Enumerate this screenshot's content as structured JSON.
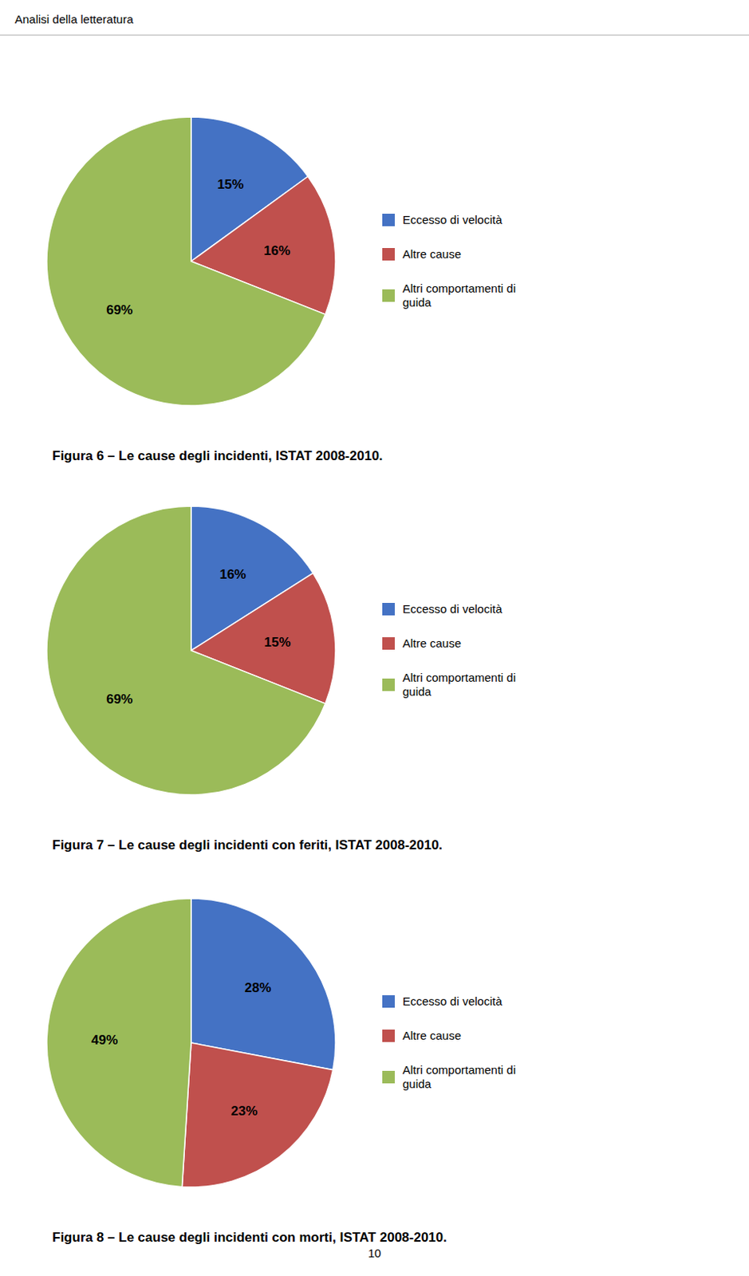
{
  "header": "Analisi della letteratura",
  "page_number": "10",
  "chart_data": [
    {
      "type": "pie",
      "title": "Figura 6 – Le cause degli incidenti, ISTAT 2008-2010.",
      "categories": [
        "Eccesso di velocità",
        "Altre cause",
        "Altri comportamenti di\nguida"
      ],
      "values": [
        15,
        16,
        69
      ],
      "value_labels": [
        "15%",
        "16%",
        "69%"
      ],
      "colors": [
        "#4472C4",
        "#C0504D",
        "#9BBB59"
      ],
      "data_labels": true,
      "legend": "right"
    },
    {
      "type": "pie",
      "title": "Figura 7 – Le cause degli incidenti con feriti, ISTAT 2008-2010.",
      "categories": [
        "Eccesso di velocità",
        "Altre cause",
        "Altri comportamenti di\nguida"
      ],
      "values": [
        16,
        15,
        69
      ],
      "value_labels": [
        "16%",
        "15%",
        "69%"
      ],
      "colors": [
        "#4472C4",
        "#C0504D",
        "#9BBB59"
      ],
      "data_labels": true,
      "legend": "right"
    },
    {
      "type": "pie",
      "title": "Figura 8 – Le cause degli incidenti con morti, ISTAT 2008-2010.",
      "categories": [
        "Eccesso di velocità",
        "Altre cause",
        "Altri comportamenti di\nguida"
      ],
      "values": [
        28,
        23,
        49
      ],
      "value_labels": [
        "28%",
        "23%",
        "49%"
      ],
      "colors": [
        "#4472C4",
        "#C0504D",
        "#9BBB59"
      ],
      "data_labels": true,
      "legend": "right"
    }
  ]
}
